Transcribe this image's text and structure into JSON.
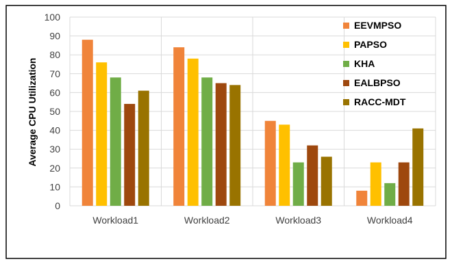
{
  "chart_data": {
    "type": "bar",
    "title": "",
    "xlabel": "",
    "ylabel": "Average CPU Utilization",
    "ylim": [
      0,
      100
    ],
    "yticks": [
      0,
      10,
      20,
      30,
      40,
      50,
      60,
      70,
      80,
      90,
      100
    ],
    "categories": [
      "Workload1",
      "Workload2",
      "Workload3",
      "Workload4"
    ],
    "grid": true,
    "legend_position": "top-right",
    "series": [
      {
        "name": "EEVMPSO",
        "color": "#F0843A",
        "values": [
          88,
          84,
          45,
          8
        ]
      },
      {
        "name": "PAPSO",
        "color": "#FFC000",
        "values": [
          76,
          78,
          43,
          23
        ]
      },
      {
        "name": "KHA",
        "color": "#70AD47",
        "values": [
          68,
          68,
          23,
          12
        ]
      },
      {
        "name": "EALBPSO",
        "color": "#9E480E",
        "values": [
          54,
          65,
          32,
          23
        ]
      },
      {
        "name": "RACC-MDT",
        "color": "#997300",
        "values": [
          61,
          64,
          26,
          41
        ]
      }
    ]
  }
}
